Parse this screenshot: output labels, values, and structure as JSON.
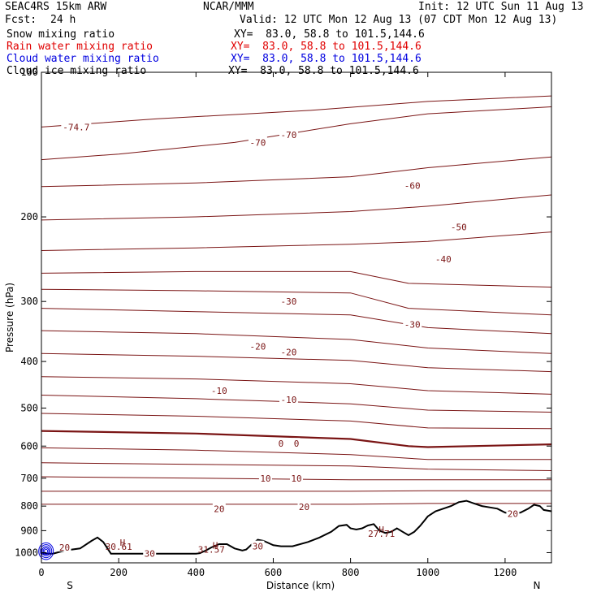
{
  "header": {
    "model": "SEAC4RS 15km ARW",
    "org": "NCAR/MMM",
    "init": "Init: 12 UTC Sun 11 Aug 13",
    "fcst_label": "Fcst:",
    "fcst_value": "24 h",
    "valid": "Valid: 12 UTC Mon 12 Aug 13 (07 CDT Mon 12 Aug 13)"
  },
  "legend": [
    {
      "label": "Snow mixing ratio",
      "xy": "XY=  83.0, 58.8 to 101.5,144.6",
      "color": "#000000"
    },
    {
      "label": "Rain water mixing ratio",
      "xy": "XY=  83.0, 58.8 to 101.5,144.6",
      "color": "#e00000"
    },
    {
      "label": "Cloud water mixing ratio",
      "xy": "XY=  83.0, 58.8 to 101.5,144.6",
      "color": "#0000e0"
    },
    {
      "label": "Cloud ice mixing ratio",
      "xy": "XY=  83.0, 58.8 to 101.5,144.6",
      "color": "#000000"
    }
  ],
  "colors": {
    "isotherm": "#7a1414",
    "terrain": "#000000",
    "cloud": "#0000e0"
  },
  "chart_data": {
    "type": "line",
    "xlabel": "Distance (km)",
    "ylabel": "Pressure (hPa)",
    "xlim": [
      0,
      1320
    ],
    "ylim": [
      1050,
      100
    ],
    "y_scale": "log",
    "xticks": [
      0,
      200,
      400,
      600,
      800,
      1000,
      1200
    ],
    "yticks": [
      100,
      200,
      300,
      400,
      500,
      600,
      700,
      800,
      900,
      1000
    ],
    "xtick_labels": [
      "0",
      "200",
      "400",
      "600",
      "800",
      "1000",
      "1200"
    ],
    "ytick_labels": [
      "100",
      "200",
      "300",
      "400",
      "500",
      "600",
      "700",
      "800",
      "900",
      "1000"
    ],
    "end_labels": {
      "left": "S",
      "right": "N"
    },
    "isotherms": [
      {
        "level": -74.7,
        "x": [
          0,
          300,
          700,
          1000,
          1320
        ],
        "y": [
          130,
          125,
          120,
          115,
          112
        ]
      },
      {
        "level": -70,
        "x": [
          0,
          200,
          500,
          800,
          1000,
          1320
        ],
        "y": [
          152,
          148,
          140,
          128,
          122,
          118
        ]
      },
      {
        "level": -60,
        "x": [
          0,
          400,
          800,
          1000,
          1320
        ],
        "y": [
          173,
          170,
          165,
          158,
          150
        ]
      },
      {
        "level": -50,
        "x": [
          0,
          400,
          800,
          1000,
          1320
        ],
        "y": [
          203,
          200,
          195,
          190,
          180
        ]
      },
      {
        "level": -40,
        "x": [
          0,
          400,
          800,
          1000,
          1320
        ],
        "y": [
          235,
          232,
          228,
          225,
          215
        ]
      },
      {
        "level": -35,
        "x": [
          0,
          400,
          800,
          950,
          1320
        ],
        "y": [
          262,
          260,
          260,
          275,
          280
        ]
      },
      {
        "level": -30,
        "x": [
          0,
          400,
          800,
          950,
          1320
        ],
        "y": [
          283,
          285,
          288,
          310,
          320
        ]
      },
      {
        "level": -25,
        "x": [
          0,
          400,
          800,
          1000,
          1320
        ],
        "y": [
          310,
          315,
          320,
          340,
          350
        ]
      },
      {
        "level": -20,
        "x": [
          0,
          400,
          800,
          1000,
          1320
        ],
        "y": [
          345,
          350,
          360,
          375,
          385
        ]
      },
      {
        "level": -15,
        "x": [
          0,
          400,
          800,
          1000,
          1320
        ],
        "y": [
          385,
          390,
          398,
          412,
          420
        ]
      },
      {
        "level": -10,
        "x": [
          0,
          400,
          800,
          1000,
          1320
        ],
        "y": [
          430,
          435,
          445,
          460,
          468
        ]
      },
      {
        "level": -5,
        "x": [
          0,
          400,
          800,
          1000,
          1320
        ],
        "y": [
          470,
          478,
          490,
          505,
          510
        ]
      },
      {
        "level": -2.5,
        "x": [
          0,
          400,
          800,
          1000,
          1320
        ],
        "y": [
          513,
          520,
          532,
          550,
          552
        ]
      },
      {
        "level": 0,
        "x": [
          0,
          400,
          800,
          950,
          1000,
          1320
        ],
        "y": [
          558,
          565,
          580,
          600,
          603,
          595
        ]
      },
      {
        "level": 2.5,
        "x": [
          0,
          400,
          800,
          1000,
          1320
        ],
        "y": [
          605,
          612,
          625,
          640,
          640
        ]
      },
      {
        "level": 5,
        "x": [
          0,
          400,
          800,
          1000,
          1320
        ],
        "y": [
          650,
          655,
          660,
          670,
          675
        ]
      },
      {
        "level": 10,
        "x": [
          0,
          400,
          800,
          1000,
          1320
        ],
        "y": [
          695,
          700,
          705,
          705,
          705
        ]
      },
      {
        "level": 15,
        "x": [
          0,
          400,
          800,
          1000,
          1320
        ],
        "y": [
          745,
          745,
          745,
          743,
          743
        ]
      },
      {
        "level": 20,
        "x": [
          0,
          400,
          800,
          1000,
          1320
        ],
        "y": [
          793,
          793,
          793,
          790,
          790
        ]
      }
    ],
    "isotherm_labels": [
      {
        "text": "-74.7",
        "x": 90,
        "y": 130
      },
      {
        "text": "-70",
        "x": 560,
        "y": 140
      },
      {
        "text": "-70",
        "x": 640,
        "y": 135
      },
      {
        "text": "-60",
        "x": 960,
        "y": 172
      },
      {
        "text": "-50",
        "x": 1080,
        "y": 210
      },
      {
        "text": "-40",
        "x": 1040,
        "y": 245
      },
      {
        "text": "-30",
        "x": 640,
        "y": 300
      },
      {
        "text": "-30",
        "x": 960,
        "y": 335
      },
      {
        "text": "-20",
        "x": 560,
        "y": 372
      },
      {
        "text": "-20",
        "x": 640,
        "y": 382
      },
      {
        "text": "-10",
        "x": 460,
        "y": 460
      },
      {
        "text": "-10",
        "x": 640,
        "y": 480
      },
      {
        "text": "0",
        "x": 620,
        "y": 593
      },
      {
        "text": "0",
        "x": 660,
        "y": 593
      },
      {
        "text": "10",
        "x": 580,
        "y": 700
      },
      {
        "text": "10",
        "x": 660,
        "y": 700
      },
      {
        "text": "20",
        "x": 460,
        "y": 810
      },
      {
        "text": "20",
        "x": 680,
        "y": 803
      },
      {
        "text": "20",
        "x": 60,
        "y": 975
      },
      {
        "text": "30",
        "x": 280,
        "y": 1005
      },
      {
        "text": "30",
        "x": 560,
        "y": 970
      },
      {
        "text": "20",
        "x": 1220,
        "y": 830
      }
    ],
    "highs": [
      {
        "text": "H",
        "x": 210,
        "y": 953
      },
      {
        "text": "30.61",
        "x": 200,
        "y": 972
      },
      {
        "text": "H",
        "x": 450,
        "y": 965
      },
      {
        "text": "31.57",
        "x": 440,
        "y": 985
      },
      {
        "text": "H",
        "x": 880,
        "y": 895
      },
      {
        "text": "27.71",
        "x": 880,
        "y": 913
      }
    ],
    "terrain": {
      "x": [
        0,
        30,
        60,
        100,
        130,
        145,
        160,
        180,
        200,
        250,
        300,
        350,
        400,
        410,
        425,
        440,
        460,
        480,
        500,
        520,
        530,
        545,
        560,
        575,
        600,
        620,
        650,
        690,
        720,
        750,
        770,
        790,
        800,
        815,
        830,
        845,
        860,
        875,
        890,
        905,
        920,
        935,
        950,
        965,
        980,
        990,
        1000,
        1020,
        1040,
        1060,
        1080,
        1100,
        1120,
        1140,
        1160,
        1180,
        1200,
        1220,
        1240,
        1260,
        1275,
        1290,
        1300,
        1320
      ],
      "y": [
        1005,
        1005,
        990,
        980,
        945,
        930,
        950,
        1005,
        1005,
        1005,
        1005,
        1005,
        1005,
        1003,
        990,
        975,
        960,
        960,
        980,
        990,
        985,
        960,
        940,
        945,
        965,
        970,
        970,
        950,
        930,
        905,
        880,
        875,
        890,
        895,
        890,
        878,
        872,
        900,
        910,
        905,
        890,
        905,
        920,
        905,
        880,
        860,
        840,
        820,
        810,
        800,
        785,
        780,
        790,
        800,
        805,
        810,
        825,
        830,
        825,
        810,
        795,
        800,
        815,
        820
      ]
    },
    "cloud_water_core": {
      "x": 12,
      "p": 993
    }
  }
}
